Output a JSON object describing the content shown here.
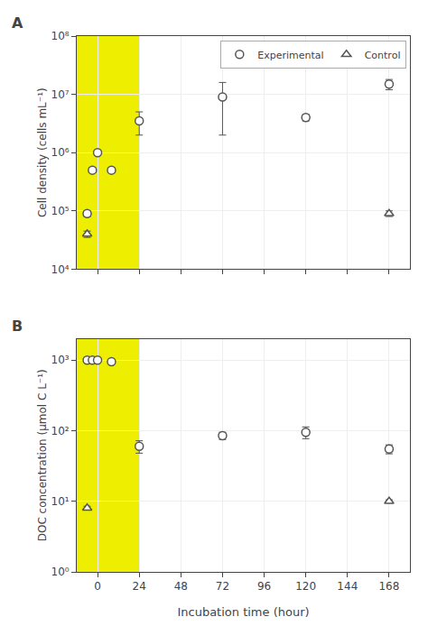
{
  "chart_data": [
    {
      "type": "scatter",
      "title": "A",
      "ylabel": "Cell density (cells mL⁻¹)",
      "log": "y",
      "grid": true,
      "legend": "upper right",
      "tick_labels": "y",
      "xlim": [
        -12,
        180
      ],
      "xticks": [
        0,
        24,
        48,
        72,
        96,
        120,
        144,
        168
      ],
      "ylim": [
        10000,
        100000000
      ],
      "yticks": [
        {
          "value": 10000,
          "label": "10⁴"
        },
        {
          "value": 100000,
          "label": "10⁵"
        },
        {
          "value": 1000000,
          "label": "10⁶"
        },
        {
          "value": 10000000,
          "label": "10⁷"
        },
        {
          "value": 100000000,
          "label": "10⁸"
        }
      ],
      "highlight": {
        "xmin": -12,
        "xmax": 24,
        "color": "#EEEE00"
      },
      "series": [
        {
          "name": "Experimental",
          "marker": "circle",
          "color": "#555555",
          "x": [
            -6,
            -3,
            0,
            8,
            24,
            72,
            120,
            168
          ],
          "values": [
            90000,
            500000,
            1000000,
            500000,
            3500000,
            9000000,
            4000000,
            15000000
          ],
          "error_minus": [
            10000,
            50000,
            100000,
            50000,
            1500000,
            7000000,
            500000,
            3000000
          ],
          "error_plus": [
            10000,
            50000,
            100000,
            50000,
            1500000,
            7000000,
            500000,
            3000000
          ]
        },
        {
          "name": "Control",
          "marker": "triangle-up",
          "color": "#555555",
          "x": [
            -6,
            168
          ],
          "values": [
            40000,
            90000
          ],
          "error_minus": [
            5000,
            10000
          ],
          "error_plus": [
            5000,
            10000
          ]
        }
      ]
    },
    {
      "type": "scatter",
      "title": "B",
      "ylabel": "DOC concentration (μmol C L⁻¹)",
      "xlabel": "Incubation time (hour)",
      "log": "y",
      "grid": true,
      "xlim": [
        -12,
        180
      ],
      "xticks": [
        0,
        24,
        48,
        72,
        96,
        120,
        144,
        168
      ],
      "ylim": [
        1,
        2000
      ],
      "yticks": [
        {
          "value": 1,
          "label": "10⁰"
        },
        {
          "value": 10,
          "label": "10¹"
        },
        {
          "value": 100,
          "label": "10²"
        },
        {
          "value": 1000,
          "label": "10³"
        }
      ],
      "highlight": {
        "xmin": -12,
        "xmax": 24,
        "color": "#EEEE00"
      },
      "series": [
        {
          "name": "Experimental",
          "marker": "circle",
          "color": "#555555",
          "x": [
            -6,
            -3,
            0,
            8,
            24,
            72,
            120,
            168
          ],
          "values": [
            1000,
            1000,
            1000,
            950,
            60,
            85,
            95,
            55
          ],
          "error_minus": [
            15,
            15,
            15,
            15,
            12,
            10,
            18,
            8
          ],
          "error_plus": [
            15,
            15,
            15,
            15,
            12,
            10,
            18,
            8
          ]
        },
        {
          "name": "Control",
          "marker": "triangle-up",
          "color": "#555555",
          "x": [
            -6,
            168
          ],
          "values": [
            8,
            10
          ],
          "error_minus": [
            0.5,
            0.5
          ],
          "error_plus": [
            0.5,
            0.5
          ]
        }
      ]
    }
  ]
}
